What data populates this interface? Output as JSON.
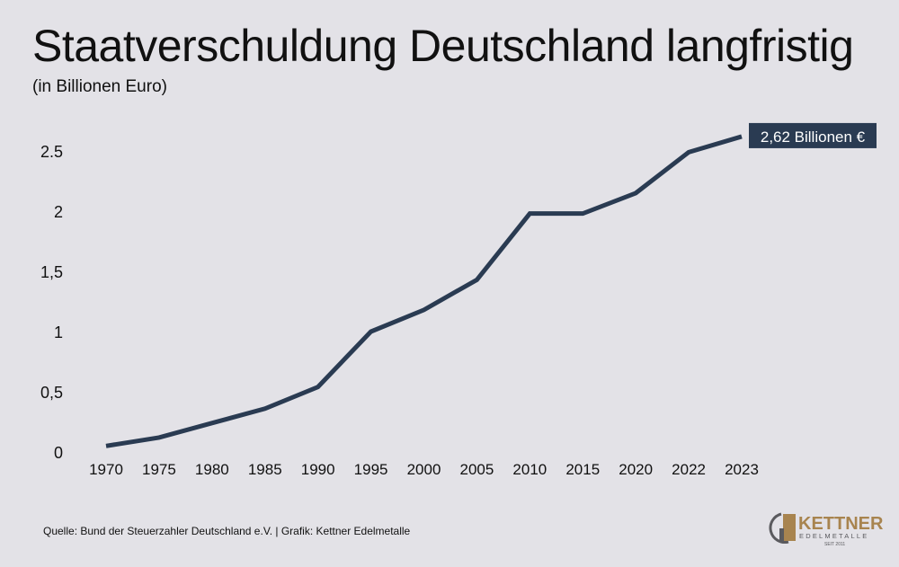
{
  "chart_data": {
    "type": "line",
    "title": "Staatverschuldung Deutschland langfristig",
    "subtitle": "(in Billionen Euro)",
    "categories": [
      "1970",
      "1975",
      "1980",
      "1985",
      "1990",
      "1995",
      "2000",
      "2005",
      "2010",
      "2015",
      "2020",
      "2022",
      "2023"
    ],
    "series": [
      {
        "values": [
          0.05,
          0.12,
          0.24,
          0.36,
          0.54,
          1.0,
          1.18,
          1.43,
          1.98,
          1.98,
          2.15,
          2.49,
          2.62
        ]
      }
    ],
    "y_ticks": [
      {
        "v": 0,
        "label": "0"
      },
      {
        "v": 0.5,
        "label": "0,5"
      },
      {
        "v": 1,
        "label": "1"
      },
      {
        "v": 1.5,
        "label": "1,5"
      },
      {
        "v": 2,
        "label": "2"
      },
      {
        "v": 2.5,
        "label": "2.5"
      }
    ],
    "ylim": [
      0,
      2.7
    ],
    "grid": false,
    "annotation": "2,62 Billionen €",
    "line_color": "#2a3b52",
    "annotation_bg": "#2a3b52"
  },
  "footer": {
    "source": "Quelle: Bund der Steuerzahler Deutschland e.V. | Grafik: Kettner Edelmetalle"
  },
  "logo": {
    "name": "KETTNER",
    "sub": "EDELMETALLE",
    "since": "SEIT 2011",
    "gold": "#a8844f",
    "gray": "#5a5a5e"
  }
}
